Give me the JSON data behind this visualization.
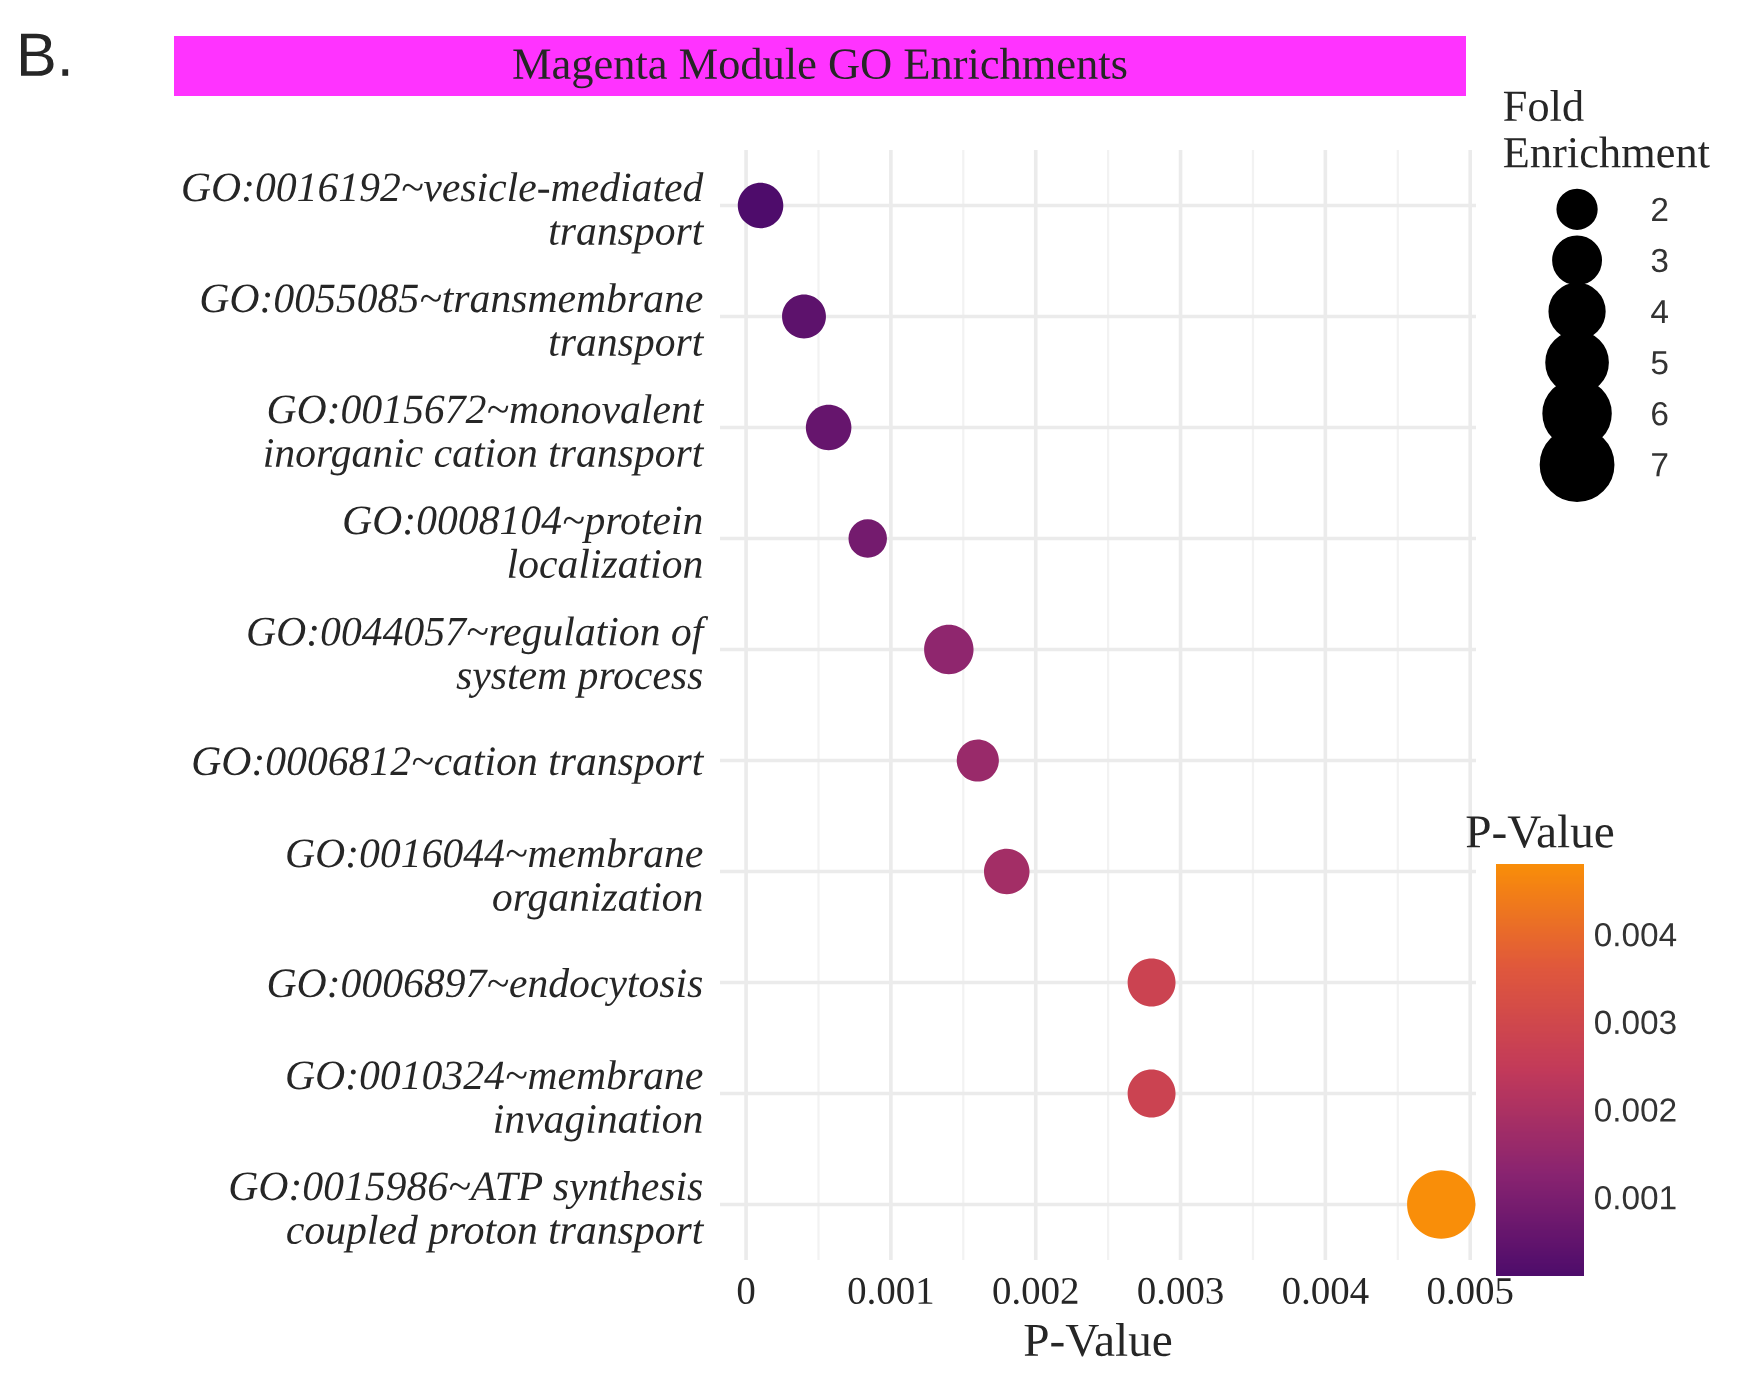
{
  "chart_data": {
    "type": "bubble",
    "title": "Magenta Module GO Enrichments",
    "categories": [
      "GO:0016192~vesicle-mediated\ntransport",
      "GO:0055085~transmembrane\ntransport",
      "GO:0015672~monovalent\ninorganic cation transport",
      "GO:0008104~protein\nlocalization",
      "GO:0044057~regulation of\nsystem process",
      "GO:0006812~cation transport",
      "GO:0016044~membrane\norganization",
      "GO:0006897~endocytosis",
      "GO:0010324~membrane\ninvagination",
      "GO:0015986~ATP synthesis\ncoupled proton transport"
    ],
    "values": [
      0.0001,
      0.0004,
      0.00057,
      0.00084,
      0.0014,
      0.0016,
      0.0018,
      0.0028,
      0.0028,
      0.0048
    ],
    "cvalues": [
      0.0001,
      0.0004,
      0.00057,
      0.00084,
      0.0014,
      0.0016,
      0.0018,
      0.0028,
      0.0028,
      0.0048
    ],
    "sizes": [
      2.8,
      2.6,
      2.8,
      2.0,
      3.3,
      2.4,
      2.8,
      3.1,
      3.1,
      6.3
    ],
    "size_legend": [
      2,
      3,
      4,
      5,
      6,
      7
    ],
    "orientation": "horizontal",
    "xlabel": "P-Value",
    "legend_title": "Fold\nEnrichment",
    "clabel": "P-Value",
    "xlim": [
      -0.00018,
      0.00504
    ],
    "xticks": [
      0,
      0.001,
      0.002,
      0.003,
      0.004,
      0.005
    ],
    "clim": [
      0.0001,
      0.0048
    ],
    "cticks": [
      0.001,
      0.002,
      0.003,
      0.004
    ],
    "grid": true,
    "annotations": [
      "B."
    ]
  }
}
